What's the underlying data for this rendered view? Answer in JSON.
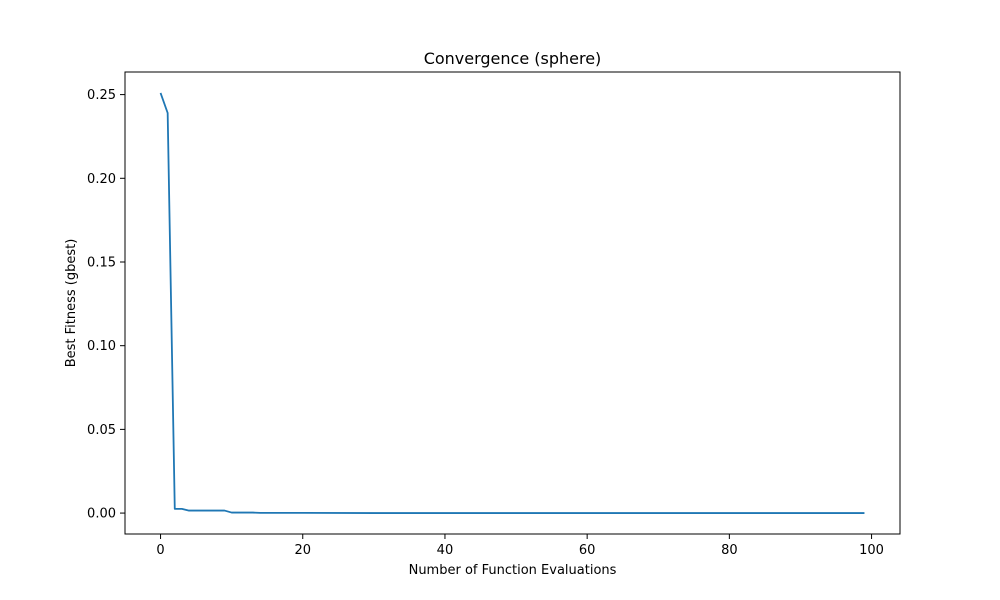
{
  "chart_data": {
    "type": "line",
    "title": "Convergence (sphere)",
    "xlabel": "Number of Function Evaluations",
    "ylabel": "Best Fitness (gbest)",
    "xlim": [
      -5,
      104
    ],
    "ylim": [
      -0.0125,
      0.2635
    ],
    "xticks": [
      0,
      20,
      40,
      60,
      80,
      100
    ],
    "xtick_labels": [
      "0",
      "20",
      "40",
      "60",
      "80",
      "100"
    ],
    "yticks": [
      0.0,
      0.05,
      0.1,
      0.15,
      0.2,
      0.25
    ],
    "ytick_labels": [
      "0.00",
      "0.05",
      "0.10",
      "0.15",
      "0.20",
      "0.25"
    ],
    "grid": false,
    "series": [
      {
        "color": "#1f77b4",
        "x": [
          0,
          1,
          2,
          3,
          4,
          5,
          6,
          7,
          8,
          9,
          10,
          11,
          12,
          13,
          14,
          15,
          20,
          30,
          40,
          50,
          60,
          70,
          80,
          90,
          99
        ],
        "y": [
          0.251,
          0.239,
          0.0025,
          0.0025,
          0.0015,
          0.0015,
          0.0015,
          0.0015,
          0.0015,
          0.0015,
          0.0003,
          0.0003,
          0.0003,
          0.0003,
          0.0001,
          0.0001,
          0.0001,
          0.0,
          0.0,
          0.0,
          0.0,
          0.0,
          0.0,
          0.0,
          0.0
        ]
      }
    ]
  }
}
